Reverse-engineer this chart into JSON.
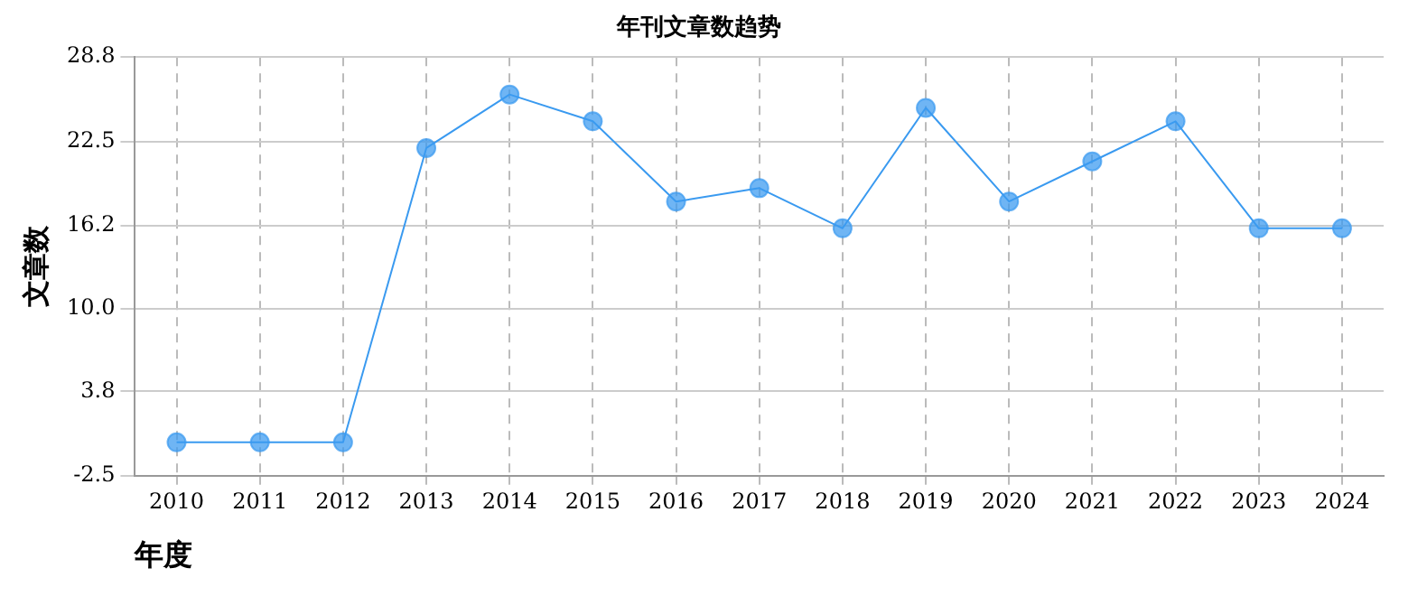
{
  "chart_data": {
    "type": "line",
    "title": "年刊文章数趋势",
    "xlabel": "年度",
    "ylabel": "文章数",
    "categories": [
      "2010",
      "2011",
      "2012",
      "2013",
      "2014",
      "2015",
      "2016",
      "2017",
      "2018",
      "2019",
      "2020",
      "2021",
      "2022",
      "2023",
      "2024"
    ],
    "series": [
      {
        "color": "#3a9af0",
        "values": [
          0,
          0,
          0,
          22,
          26,
          24,
          18,
          19,
          16,
          25,
          18,
          21,
          24,
          16,
          16
        ]
      }
    ],
    "ylim": [
      -2.5,
      28.8
    ],
    "yticks": [
      -2.5,
      3.8,
      {
        "value": 10,
        "label": "10.0"
      },
      16.2,
      22.5,
      28.8
    ],
    "grid": true,
    "marker": "circle",
    "line_style": "solid",
    "legend": false
  }
}
